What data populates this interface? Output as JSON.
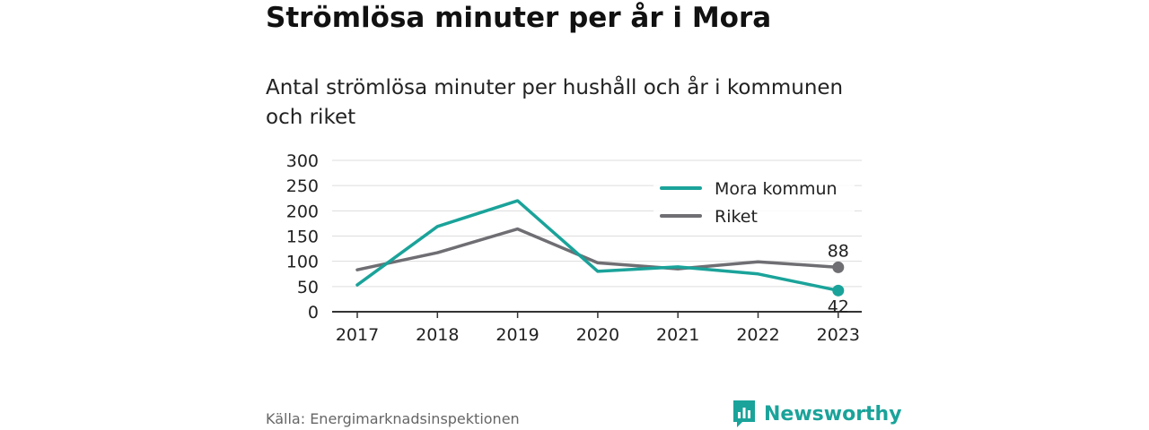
{
  "title": "Strömlösa minuter per år i Mora",
  "subtitle": "Antal strömlösa minuter per hushåll och år i kommunen och riket",
  "source": "Källa: Energimarknadsinspektionen",
  "brand": "Newsworthy",
  "colors": {
    "mora": "#1aa39a",
    "riket": "#6e6e73",
    "grid": "#dddddd",
    "axis": "#333333"
  },
  "chart_data": {
    "type": "line",
    "x": [
      "2017",
      "2018",
      "2019",
      "2020",
      "2021",
      "2022",
      "2023"
    ],
    "ylim": [
      0,
      300
    ],
    "yticks": [
      0,
      50,
      100,
      150,
      200,
      250,
      300
    ],
    "grid": true,
    "legend": "top-right",
    "series": [
      {
        "name": "Mora kommun",
        "values": [
          53,
          169,
          220,
          80,
          89,
          75,
          42
        ],
        "end_label": "42"
      },
      {
        "name": "Riket",
        "values": [
          83,
          117,
          164,
          97,
          85,
          99,
          88
        ],
        "end_label": "88"
      }
    ]
  }
}
